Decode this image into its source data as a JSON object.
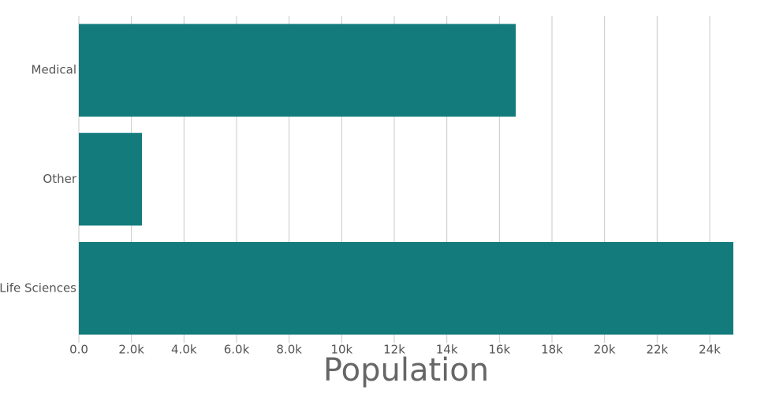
{
  "chart_data": {
    "type": "bar",
    "orientation": "horizontal",
    "x_label": "Population",
    "categories": [
      "Medical",
      "Other",
      "Life Sciences"
    ],
    "values": [
      16620,
      2400,
      24900
    ],
    "color": "#147b7d",
    "xlim": [
      0,
      24900
    ],
    "xticks": [
      {
        "value": 0,
        "label": "0.0"
      },
      {
        "value": 2000,
        "label": "2.0k"
      },
      {
        "value": 4000,
        "label": "4.0k"
      },
      {
        "value": 6000,
        "label": "6.0k"
      },
      {
        "value": 8000,
        "label": "8.0k"
      },
      {
        "value": 10000,
        "label": "10k"
      },
      {
        "value": 12000,
        "label": "12k"
      },
      {
        "value": 14000,
        "label": "14k"
      },
      {
        "value": 16000,
        "label": "16k"
      },
      {
        "value": 18000,
        "label": "18k"
      },
      {
        "value": 20000,
        "label": "20k"
      },
      {
        "value": 22000,
        "label": "22k"
      },
      {
        "value": 24000,
        "label": "24k"
      }
    ],
    "grid": true
  }
}
